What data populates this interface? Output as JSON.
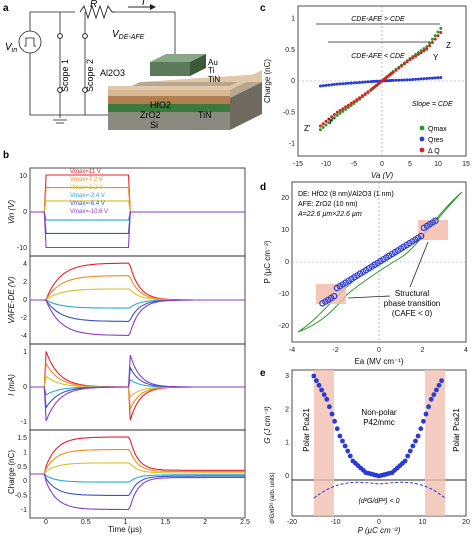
{
  "panel_letters": [
    "a",
    "b",
    "c",
    "d",
    "e"
  ],
  "circuit": {
    "r_label": "R",
    "i_label": "I",
    "vin_label": "V",
    "vin_sub": "in",
    "vdeafe_label": "V",
    "vdeafe_sub": "DE-AFE",
    "scope1": "Scope 1",
    "scope2": "Scope 2",
    "layers": [
      "Au",
      "Ti",
      "TiN",
      "Al2O3",
      "HfO2",
      "ZrO2",
      "TiN",
      "Si"
    ]
  },
  "panel_b": {
    "xlabel": "Time (µs)",
    "x_ticks": [
      "0",
      "0.5",
      "1",
      "1.5",
      "2",
      "2.5"
    ],
    "legend": [
      "Vmax=11 V",
      "Vmax=7.2 V",
      "Vmax=3.2 V",
      "Vmax=-2.4 V",
      "Vmax=-6.4 V",
      "Vmax=-10.6 V"
    ],
    "colors": [
      "#e8202a",
      "#f28c1e",
      "#d6c22a",
      "#2aa9d6",
      "#3a54c8",
      "#8a3cc8"
    ],
    "sub1": {
      "ylabel": "Vin (V)",
      "ticks": [
        "10",
        "0",
        "-10"
      ]
    },
    "sub2": {
      "ylabel": "VAFE-DE (V)",
      "ticks": [
        "4",
        "2",
        "0",
        "-2",
        "-4"
      ]
    },
    "sub3": {
      "ylabel": "I (mA)",
      "ticks": [
        "1",
        "0",
        "-1"
      ]
    },
    "sub4": {
      "ylabel": "Charge (nC)",
      "ticks": [
        "1.5",
        "1",
        "0.5",
        "0",
        "-0.5",
        "-1"
      ]
    }
  },
  "panel_c": {
    "ylabel": "Charge (nC)",
    "xlabel": "Va (V)",
    "x_ticks": [
      "-15",
      "-10",
      "-5",
      "0",
      "5",
      "10",
      "15"
    ],
    "y_ticks": [
      "1",
      "0.5",
      "0",
      "-0.5",
      "-1"
    ],
    "ann_top": "CDE-AFE > CDE",
    "ann_mid": "CDE-AFE < CDE",
    "slope": "Slope = CDE",
    "points": [
      "Z",
      "Y",
      "Z'",
      "Y'"
    ],
    "legend": [
      "Qmax",
      "Qres",
      "Δ Q"
    ],
    "legend_colors": [
      "#2a9a2a",
      "#2a3ad6",
      "#d82020"
    ]
  },
  "panel_d": {
    "ylabel": "P (µC cm⁻²)",
    "xlabel": "Ea (MV cm⁻¹)",
    "x_ticks": [
      "-4",
      "-2",
      "0",
      "2",
      "4"
    ],
    "y_ticks": [
      "20",
      "10",
      "0",
      "-10",
      "-20"
    ],
    "info": [
      "DE: HfO2 (8 nm)/Al2O3 (1 nm)",
      "AFE: ZrO2 (10 nm)",
      "A=22.6 µm×22.6 µm"
    ],
    "annotation": [
      "Structural",
      "phase transition",
      "(CAFE < 0)"
    ]
  },
  "panel_e": {
    "ylabel": "G (J cm⁻³)",
    "ylabel2": "d²G/dP² (arb. units)",
    "xlabel": "P (µC cm⁻²)",
    "x_ticks": [
      "-20",
      "-10",
      "0",
      "10",
      "20"
    ],
    "y_ticks": [
      "3",
      "2",
      "1",
      "0"
    ],
    "center_label": [
      "Non-polar",
      "P42/nmc"
    ],
    "left_label": "Polar Pca21",
    "right_label": "Polar Pca21",
    "inset_label": "(d²G/dP²) < 0"
  },
  "chart_data": [
    {
      "type": "line",
      "panel": "c",
      "xlabel": "Va (V)",
      "ylabel": "Charge (nC)",
      "xlim": [
        -15,
        15
      ],
      "ylim": [
        -1.2,
        1.2
      ],
      "series": [
        {
          "name": "Qmax",
          "x": [
            -11,
            -8,
            -5,
            -2,
            0,
            2,
            5,
            8,
            11
          ],
          "y": [
            -0.78,
            -0.55,
            -0.36,
            -0.15,
            0,
            0.15,
            0.36,
            0.55,
            0.9
          ]
        },
        {
          "name": "Qres",
          "x": [
            -11,
            -8,
            -5,
            -2,
            0,
            2,
            5,
            8,
            11
          ],
          "y": [
            -0.08,
            -0.05,
            -0.03,
            -0.01,
            0,
            0.01,
            0.02,
            0.04,
            0.06
          ]
        },
        {
          "name": "Δ Q",
          "x": [
            -11,
            -8,
            -5,
            -2,
            0,
            2,
            5,
            8,
            11
          ],
          "y": [
            -0.72,
            -0.5,
            -0.33,
            -0.14,
            0,
            0.14,
            0.34,
            0.51,
            0.83
          ]
        }
      ]
    },
    {
      "type": "line",
      "panel": "e",
      "xlabel": "P (µC cm⁻²)",
      "ylabel": "G (J cm⁻³)",
      "xlim": [
        -20,
        20
      ],
      "ylim": [
        0,
        3
      ],
      "series": [
        {
          "x": [
            -15,
            -12,
            -9,
            -6,
            -3,
            0,
            3,
            6,
            9,
            12,
            15
          ],
          "y": [
            3.0,
            2.3,
            1.2,
            0.45,
            0.1,
            0,
            0.1,
            0.45,
            1.2,
            2.3,
            3.0
          ]
        }
      ]
    }
  ]
}
